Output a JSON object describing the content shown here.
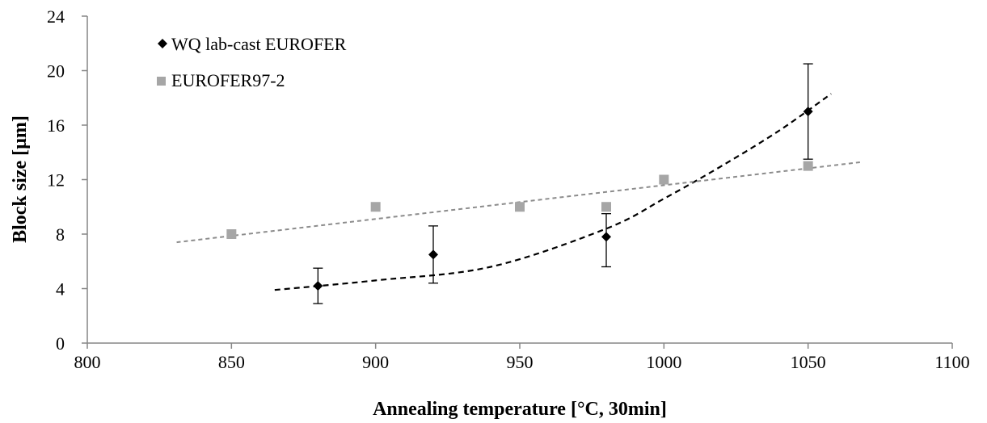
{
  "chart_data": {
    "type": "scatter",
    "xlabel": "Annealing temperature  [°C, 30min]",
    "ylabel": "Block size [µm]",
    "xlim": [
      800,
      1100
    ],
    "ylim": [
      0,
      24
    ],
    "xticks": [
      800,
      850,
      900,
      950,
      1000,
      1050,
      1100
    ],
    "yticks": [
      0,
      4,
      8,
      12,
      16,
      20,
      24
    ],
    "grid": false,
    "legend_position": "top-left",
    "series": [
      {
        "name": "WQ lab-cast EUROFER",
        "marker": "diamond",
        "color": "#000000",
        "x": [
          880,
          920,
          980,
          1050
        ],
        "y": [
          4.2,
          6.5,
          7.8,
          17.0
        ],
        "error_low": [
          2.9,
          4.4,
          5.6,
          13.5
        ],
        "error_high": [
          5.5,
          8.6,
          9.5,
          20.5
        ],
        "trendline": {
          "style": "dashed",
          "color": "#000000",
          "x": [
            865,
            900,
            940,
            980,
            1000,
            1020,
            1040,
            1058
          ],
          "y": [
            3.9,
            4.6,
            5.6,
            8.4,
            10.6,
            13.0,
            15.6,
            18.3
          ]
        }
      },
      {
        "name": "EUROFER97-2",
        "marker": "square",
        "color": "#a6a6a6",
        "x": [
          850,
          900,
          950,
          980,
          1000,
          1050
        ],
        "y": [
          8.0,
          10.0,
          10.0,
          10.0,
          12.0,
          13.0
        ],
        "trendline": {
          "style": "dashed",
          "color": "#8c8c8c",
          "x": [
            831,
            1069
          ],
          "y": [
            7.4,
            13.3
          ]
        }
      }
    ]
  }
}
